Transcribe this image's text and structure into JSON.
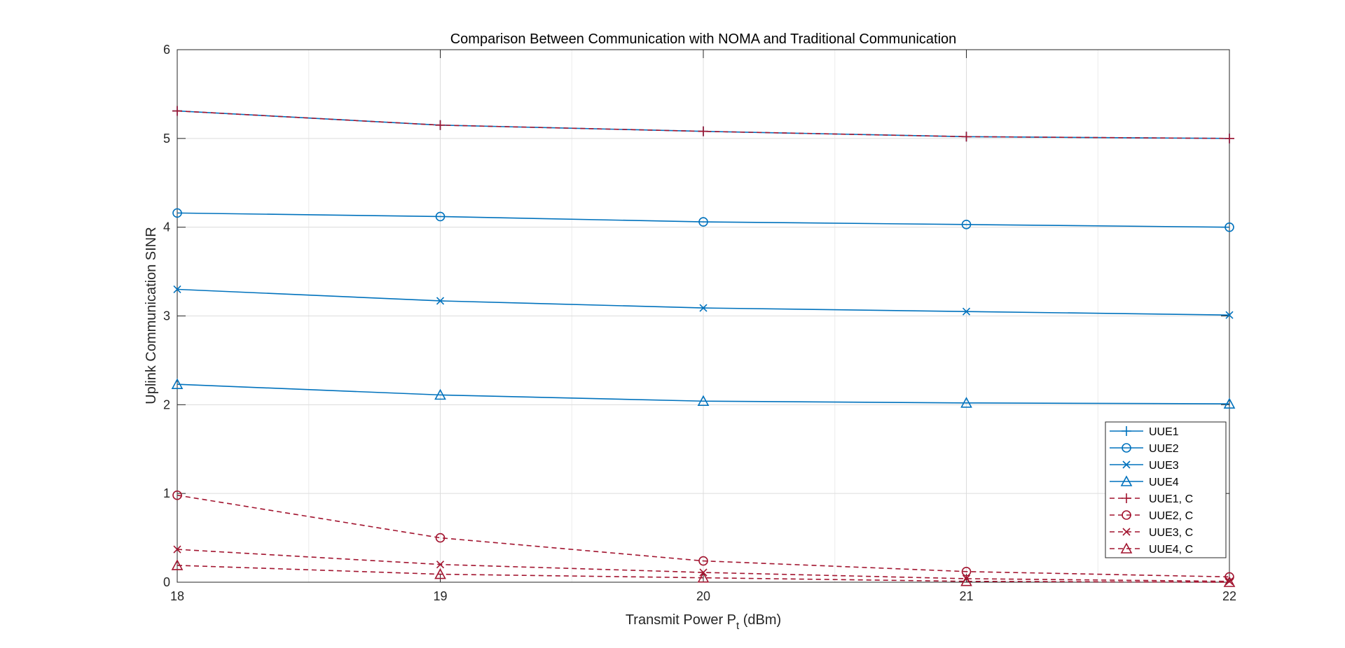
{
  "chart_data": {
    "type": "line",
    "title": "Comparison Between Communication with NOMA and Traditional Communication",
    "xlabel_main": "Transmit Power P",
    "xlabel_sub": "t",
    "xlabel_unit": " (dBm)",
    "ylabel": "Uplink Communication SINR",
    "x": [
      18,
      19,
      20,
      21,
      22
    ],
    "xlim": [
      18,
      22
    ],
    "ylim": [
      0,
      6
    ],
    "xticks": [
      "18",
      "19",
      "20",
      "21",
      "22"
    ],
    "yticks": [
      "0",
      "1",
      "2",
      "3",
      "4",
      "5",
      "6"
    ],
    "grid": true,
    "legend_position": "bottom-right",
    "series": [
      {
        "name": "UUE1",
        "values": [
          5.31,
          5.15,
          5.08,
          5.02,
          5.0
        ],
        "color": "#0072BD",
        "dash": false,
        "marker": "plus"
      },
      {
        "name": "UUE2",
        "values": [
          4.16,
          4.12,
          4.06,
          4.03,
          4.0
        ],
        "color": "#0072BD",
        "dash": false,
        "marker": "circle"
      },
      {
        "name": "UUE3",
        "values": [
          3.3,
          3.17,
          3.09,
          3.05,
          3.01
        ],
        "color": "#0072BD",
        "dash": false,
        "marker": "x"
      },
      {
        "name": "UUE4",
        "values": [
          2.23,
          2.11,
          2.04,
          2.02,
          2.01
        ],
        "color": "#0072BD",
        "dash": false,
        "marker": "triangle"
      },
      {
        "name": "UUE1, C",
        "values": [
          5.31,
          5.15,
          5.08,
          5.02,
          5.0
        ],
        "color": "#A2142F",
        "dash": true,
        "marker": "plus"
      },
      {
        "name": "UUE2, C",
        "values": [
          0.98,
          0.5,
          0.24,
          0.12,
          0.06
        ],
        "color": "#A2142F",
        "dash": true,
        "marker": "circle"
      },
      {
        "name": "UUE3, C",
        "values": [
          0.37,
          0.2,
          0.11,
          0.04,
          0.01
        ],
        "color": "#A2142F",
        "dash": true,
        "marker": "x"
      },
      {
        "name": "UUE4, C",
        "values": [
          0.19,
          0.09,
          0.05,
          0.01,
          0.0
        ],
        "color": "#A2142F",
        "dash": true,
        "marker": "triangle"
      }
    ]
  }
}
